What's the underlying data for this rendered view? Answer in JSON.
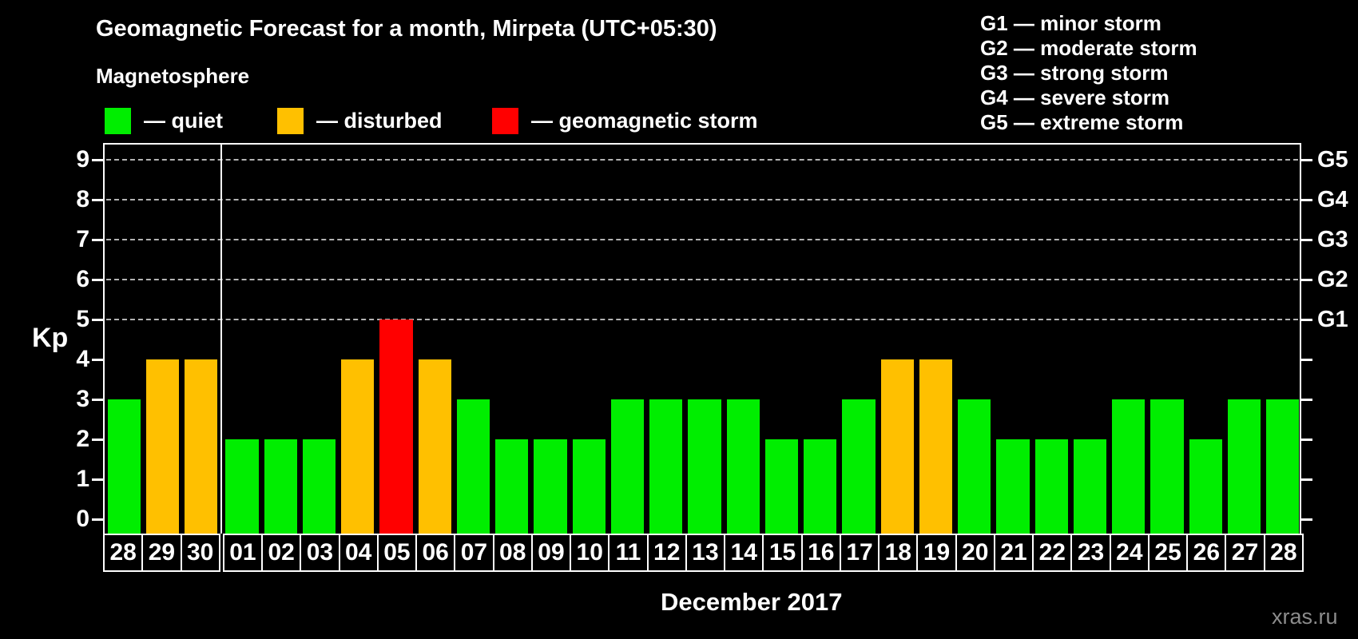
{
  "legend": {
    "heading": "Magnetosphere",
    "items": [
      {
        "key": "quiet",
        "label": "— quiet"
      },
      {
        "key": "disturbed",
        "label": "— disturbed"
      },
      {
        "key": "storm",
        "label": "— geomagnetic storm"
      }
    ]
  },
  "g_legend": [
    "G1 — minor storm",
    "G2 — moderate storm",
    "G3 — strong storm",
    "G4 — severe storm",
    "G5 — extreme storm"
  ],
  "footer": {
    "watermark": "xras.ru"
  },
  "colors": {
    "quiet": "#00ee00",
    "disturbed": "#ffc000",
    "storm": "#ff0000",
    "axis": "#ffffff",
    "grid": "#b3b3b3",
    "background": "#000000",
    "watermark": "#8c8c8c"
  },
  "chart_data": {
    "type": "bar",
    "title": "Geomagnetic Forecast for a month, Mirpeta (UTC+05:30)",
    "xlabel": "December 2017",
    "ylabel": "Kp",
    "ylim": [
      0,
      9
    ],
    "yticks_left": [
      "0",
      "1",
      "2",
      "3",
      "4",
      "5",
      "6",
      "7",
      "8",
      "9"
    ],
    "right_axis_labels": [
      {
        "kp": 5,
        "label": "G1"
      },
      {
        "kp": 6,
        "label": "G2"
      },
      {
        "kp": 7,
        "label": "G3"
      },
      {
        "kp": 8,
        "label": "G4"
      },
      {
        "kp": 9,
        "label": "G5"
      }
    ],
    "gridlines_at_kp": [
      5,
      6,
      7,
      8,
      9
    ],
    "grid": "dashed",
    "legend_position": "top",
    "prev_month_days": 3,
    "categories": [
      "28",
      "29",
      "30",
      "01",
      "02",
      "03",
      "04",
      "05",
      "06",
      "07",
      "08",
      "09",
      "10",
      "11",
      "12",
      "13",
      "14",
      "15",
      "16",
      "17",
      "18",
      "19",
      "20",
      "21",
      "22",
      "23",
      "24",
      "25",
      "26",
      "27",
      "28"
    ],
    "values": [
      3,
      4,
      4,
      2,
      2,
      2,
      4,
      5,
      4,
      3,
      2,
      2,
      2,
      3,
      3,
      3,
      3,
      2,
      2,
      3,
      4,
      4,
      3,
      2,
      2,
      2,
      3,
      3,
      2,
      3,
      3
    ],
    "statuses": [
      "quiet",
      "disturbed",
      "disturbed",
      "quiet",
      "quiet",
      "quiet",
      "disturbed",
      "storm",
      "disturbed",
      "quiet",
      "quiet",
      "quiet",
      "quiet",
      "quiet",
      "quiet",
      "quiet",
      "quiet",
      "quiet",
      "quiet",
      "quiet",
      "disturbed",
      "disturbed",
      "quiet",
      "quiet",
      "quiet",
      "quiet",
      "quiet",
      "quiet",
      "quiet",
      "quiet",
      "quiet"
    ]
  }
}
